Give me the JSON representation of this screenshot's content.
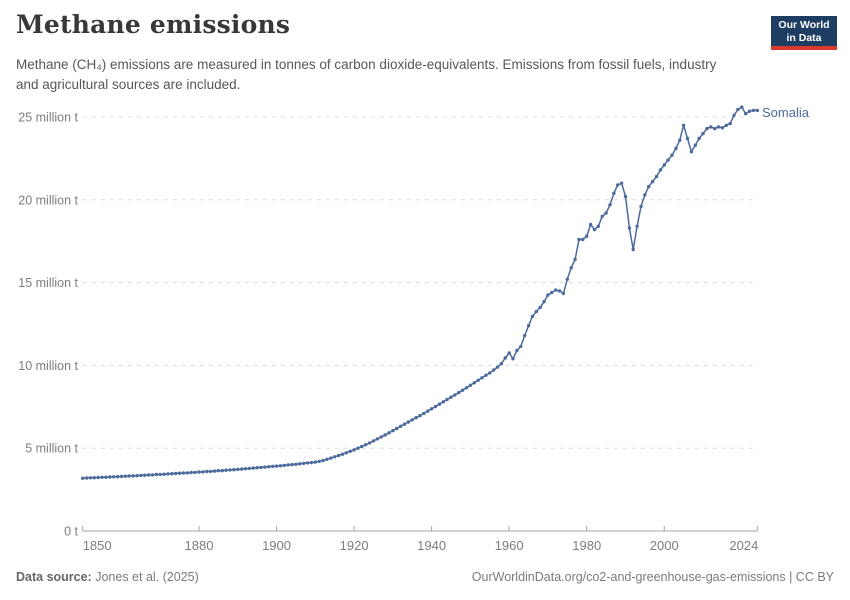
{
  "header": {
    "title": "Methane emissions",
    "subtitle": "Methane (CH₄) emissions are measured in tonnes of carbon dioxide-equivalents. Emissions from fossil fuels, industry and agricultural sources are included.",
    "logo": {
      "line1": "Our World",
      "line2": "in Data",
      "bg_color": "#1d3d63",
      "accent_color": "#d93a2b"
    }
  },
  "chart_data": {
    "type": "line",
    "title": "Methane emissions",
    "xlabel": "",
    "ylabel": "",
    "unit": "million t",
    "x_start": 1850,
    "x_end": 2024,
    "ylim": [
      0,
      25
    ],
    "grid": true,
    "legend_position": "end-of-line-label",
    "x_ticks": [
      1850,
      1880,
      1900,
      1920,
      1940,
      1960,
      1980,
      2000,
      2024
    ],
    "y_ticks": [
      {
        "value": 0,
        "label": "0 t"
      },
      {
        "value": 5,
        "label": "5 million t"
      },
      {
        "value": 10,
        "label": "10 million t"
      },
      {
        "value": 15,
        "label": "15 million t"
      },
      {
        "value": 20,
        "label": "20 million t"
      },
      {
        "value": 25,
        "label": "25 million t"
      }
    ],
    "colors": {
      "series": "#4c6a9c",
      "grid": "#dcdcdc",
      "axis": "#a3a3a3",
      "axis_text": "#7d7d7d"
    },
    "series": [
      {
        "name": "Somalia",
        "color": "#4c6a9c",
        "start_year": 1850,
        "values": [
          3.19,
          3.2,
          3.21,
          3.22,
          3.23,
          3.24,
          3.25,
          3.26,
          3.27,
          3.28,
          3.3,
          3.31,
          3.32,
          3.33,
          3.34,
          3.36,
          3.37,
          3.38,
          3.39,
          3.41,
          3.42,
          3.43,
          3.45,
          3.46,
          3.47,
          3.49,
          3.5,
          3.51,
          3.53,
          3.54,
          3.56,
          3.57,
          3.59,
          3.6,
          3.62,
          3.64,
          3.65,
          3.67,
          3.69,
          3.7,
          3.72,
          3.74,
          3.76,
          3.78,
          3.8,
          3.82,
          3.84,
          3.86,
          3.88,
          3.9,
          3.92,
          3.94,
          3.96,
          3.99,
          4.01,
          4.03,
          4.06,
          4.08,
          4.11,
          4.13,
          4.16,
          4.2,
          4.26,
          4.33,
          4.4,
          4.48,
          4.56,
          4.64,
          4.72,
          4.81,
          4.9,
          5.0,
          5.1,
          5.21,
          5.32,
          5.44,
          5.56,
          5.68,
          5.8,
          5.93,
          6.06,
          6.19,
          6.32,
          6.45,
          6.58,
          6.71,
          6.84,
          6.97,
          7.1,
          7.24,
          7.38,
          7.52,
          7.66,
          7.8,
          7.94,
          8.08,
          8.22,
          8.36,
          8.5,
          8.65,
          8.8,
          8.95,
          9.1,
          9.25,
          9.4,
          9.55,
          9.72,
          9.9,
          10.1,
          10.45,
          10.75,
          10.4,
          10.9,
          11.15,
          11.8,
          12.4,
          12.95,
          13.25,
          13.5,
          13.85,
          14.25,
          14.4,
          14.55,
          14.5,
          14.35,
          15.2,
          15.9,
          16.4,
          17.6,
          17.6,
          17.8,
          18.5,
          18.2,
          18.4,
          19.0,
          19.2,
          19.7,
          20.4,
          20.9,
          21.0,
          20.2,
          18.3,
          17.0,
          18.4,
          19.6,
          20.3,
          20.8,
          21.1,
          21.4,
          21.8,
          22.1,
          22.4,
          22.7,
          23.1,
          23.6,
          24.5,
          23.7,
          22.9,
          23.3,
          23.7,
          24.0,
          24.3,
          24.4,
          24.3,
          24.4,
          24.35,
          24.5,
          24.6,
          25.1,
          25.45,
          25.6,
          25.2,
          25.35,
          25.4,
          25.4
        ]
      }
    ]
  },
  "footer": {
    "source_label": "Data source:",
    "source_value": "Jones et al. (2025)",
    "link_text": "OurWorldinData.org/co2-and-greenhouse-gas-emissions | CC BY"
  }
}
